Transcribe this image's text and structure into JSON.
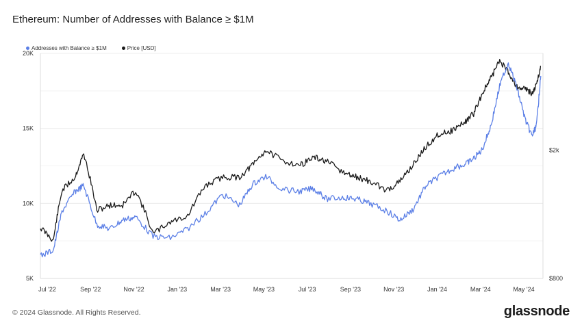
{
  "title": "Ethereum: Number of Addresses with Balance ≥ $1M",
  "footer": "© 2024 Glassnode. All Rights Reserved.",
  "brand": "glassnode",
  "colors": {
    "addresses": "#5b7fe6",
    "price": "#1a1a1a",
    "grid": "#ececec",
    "axis_text": "#333333"
  },
  "chart_data": {
    "type": "line",
    "title": "Ethereum: Number of Addresses with Balance ≥ $1M",
    "legend_position": "top-left",
    "x_labels": [
      "Jul '22",
      "Sep '22",
      "Nov '22",
      "Jan '23",
      "Mar '23",
      "May '23",
      "Jul '23",
      "Sep '23",
      "Nov '23",
      "Jan '24",
      "Mar '24",
      "May '24"
    ],
    "left_axis": {
      "label": "",
      "ticks": [
        "5K",
        "10K",
        "15K",
        "20K"
      ],
      "tick_values": [
        5000,
        10000,
        15000,
        20000
      ],
      "range": [
        5000,
        20000
      ]
    },
    "right_axis": {
      "label": "",
      "scale": "log",
      "ticks": [
        "$800",
        "$2k"
      ],
      "tick_values": [
        800,
        2000
      ],
      "range": [
        800,
        4000
      ]
    },
    "series": [
      {
        "name": "Addresses with Balance ≥ $1M",
        "axis": "left",
        "t": [
          0.0,
          0.3,
          0.5,
          0.8,
          1.0,
          1.3,
          1.6,
          1.9,
          2.2,
          2.6,
          3.0,
          3.4,
          3.8,
          4.2,
          4.6,
          4.9,
          5.2,
          5.6,
          6.0,
          6.3,
          6.6,
          7.0,
          7.3,
          7.6,
          8.0,
          8.3,
          8.6,
          8.9,
          9.2,
          9.5,
          9.8,
          10.0,
          10.2,
          10.4,
          10.6,
          10.8,
          11.0,
          11.2,
          11.35,
          11.45,
          11.55
        ],
        "values": [
          6500,
          6900,
          9500,
          10800,
          11200,
          8600,
          8300,
          8900,
          9100,
          7800,
          7700,
          8300,
          9300,
          10600,
          9900,
          11300,
          11800,
          10900,
          10800,
          11000,
          10300,
          10400,
          10300,
          10000,
          9500,
          8900,
          9600,
          11200,
          11800,
          12300,
          12600,
          13000,
          13600,
          15200,
          17800,
          19400,
          17700,
          15500,
          14500,
          15200,
          18500
        ]
      },
      {
        "name": "Price [USD]",
        "axis": "right",
        "t": [
          0.0,
          0.3,
          0.5,
          0.8,
          1.0,
          1.3,
          1.6,
          1.9,
          2.2,
          2.6,
          3.0,
          3.4,
          3.8,
          4.2,
          4.6,
          4.9,
          5.2,
          5.6,
          6.0,
          6.3,
          6.6,
          7.0,
          7.3,
          7.6,
          8.0,
          8.3,
          8.6,
          8.9,
          9.2,
          9.5,
          9.8,
          10.0,
          10.2,
          10.4,
          10.6,
          10.8,
          11.0,
          11.2,
          11.35,
          11.45,
          11.55
        ],
        "values": [
          1150,
          1050,
          1500,
          1650,
          1950,
          1300,
          1350,
          1350,
          1500,
          1100,
          1200,
          1250,
          1550,
          1650,
          1650,
          1800,
          2000,
          1850,
          1800,
          1900,
          1850,
          1700,
          1650,
          1600,
          1500,
          1600,
          1800,
          2050,
          2250,
          2300,
          2450,
          2600,
          3000,
          3350,
          3800,
          3500,
          3150,
          3100,
          3000,
          3200,
          3650
        ]
      }
    ]
  }
}
